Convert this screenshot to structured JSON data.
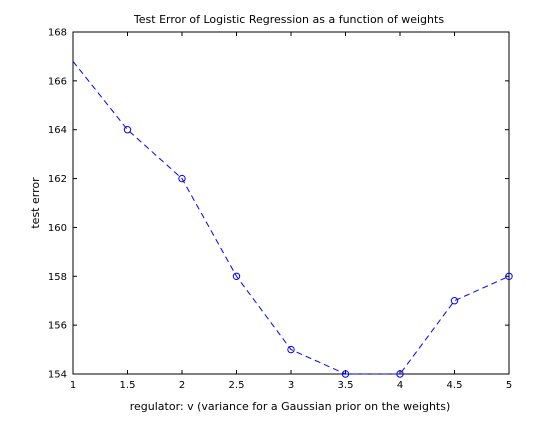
{
  "chart_data": {
    "type": "line",
    "title": "Test Error of Logistic Regression as a function of weights",
    "xlabel": "regulator: v (variance for a Gaussian prior on the weights)",
    "ylabel": "test error",
    "xlim": [
      1,
      5
    ],
    "ylim": [
      154,
      168
    ],
    "xticks": [
      1,
      1.5,
      2,
      2.5,
      3,
      3.5,
      4,
      4.5,
      5
    ],
    "yticks": [
      154,
      156,
      158,
      160,
      162,
      164,
      166,
      168
    ],
    "xtick_labels": [
      "1",
      "1.5",
      "2",
      "2.5",
      "3",
      "3.5",
      "4",
      "4.5",
      "5"
    ],
    "ytick_labels": [
      "154",
      "156",
      "158",
      "160",
      "162",
      "164",
      "166",
      "168"
    ],
    "grid": false,
    "legend": "none",
    "series": [
      {
        "x": [
          1,
          1.5,
          2,
          2.5,
          3,
          3.5,
          4,
          4.5,
          5
        ],
        "y": [
          166.8,
          164,
          162,
          158,
          155,
          154,
          154,
          157,
          158
        ],
        "markers_shown": [
          false,
          true,
          true,
          true,
          true,
          true,
          true,
          true,
          true
        ],
        "color": "#0000ff",
        "line_style": "dashed",
        "marker": "circle"
      }
    ]
  }
}
